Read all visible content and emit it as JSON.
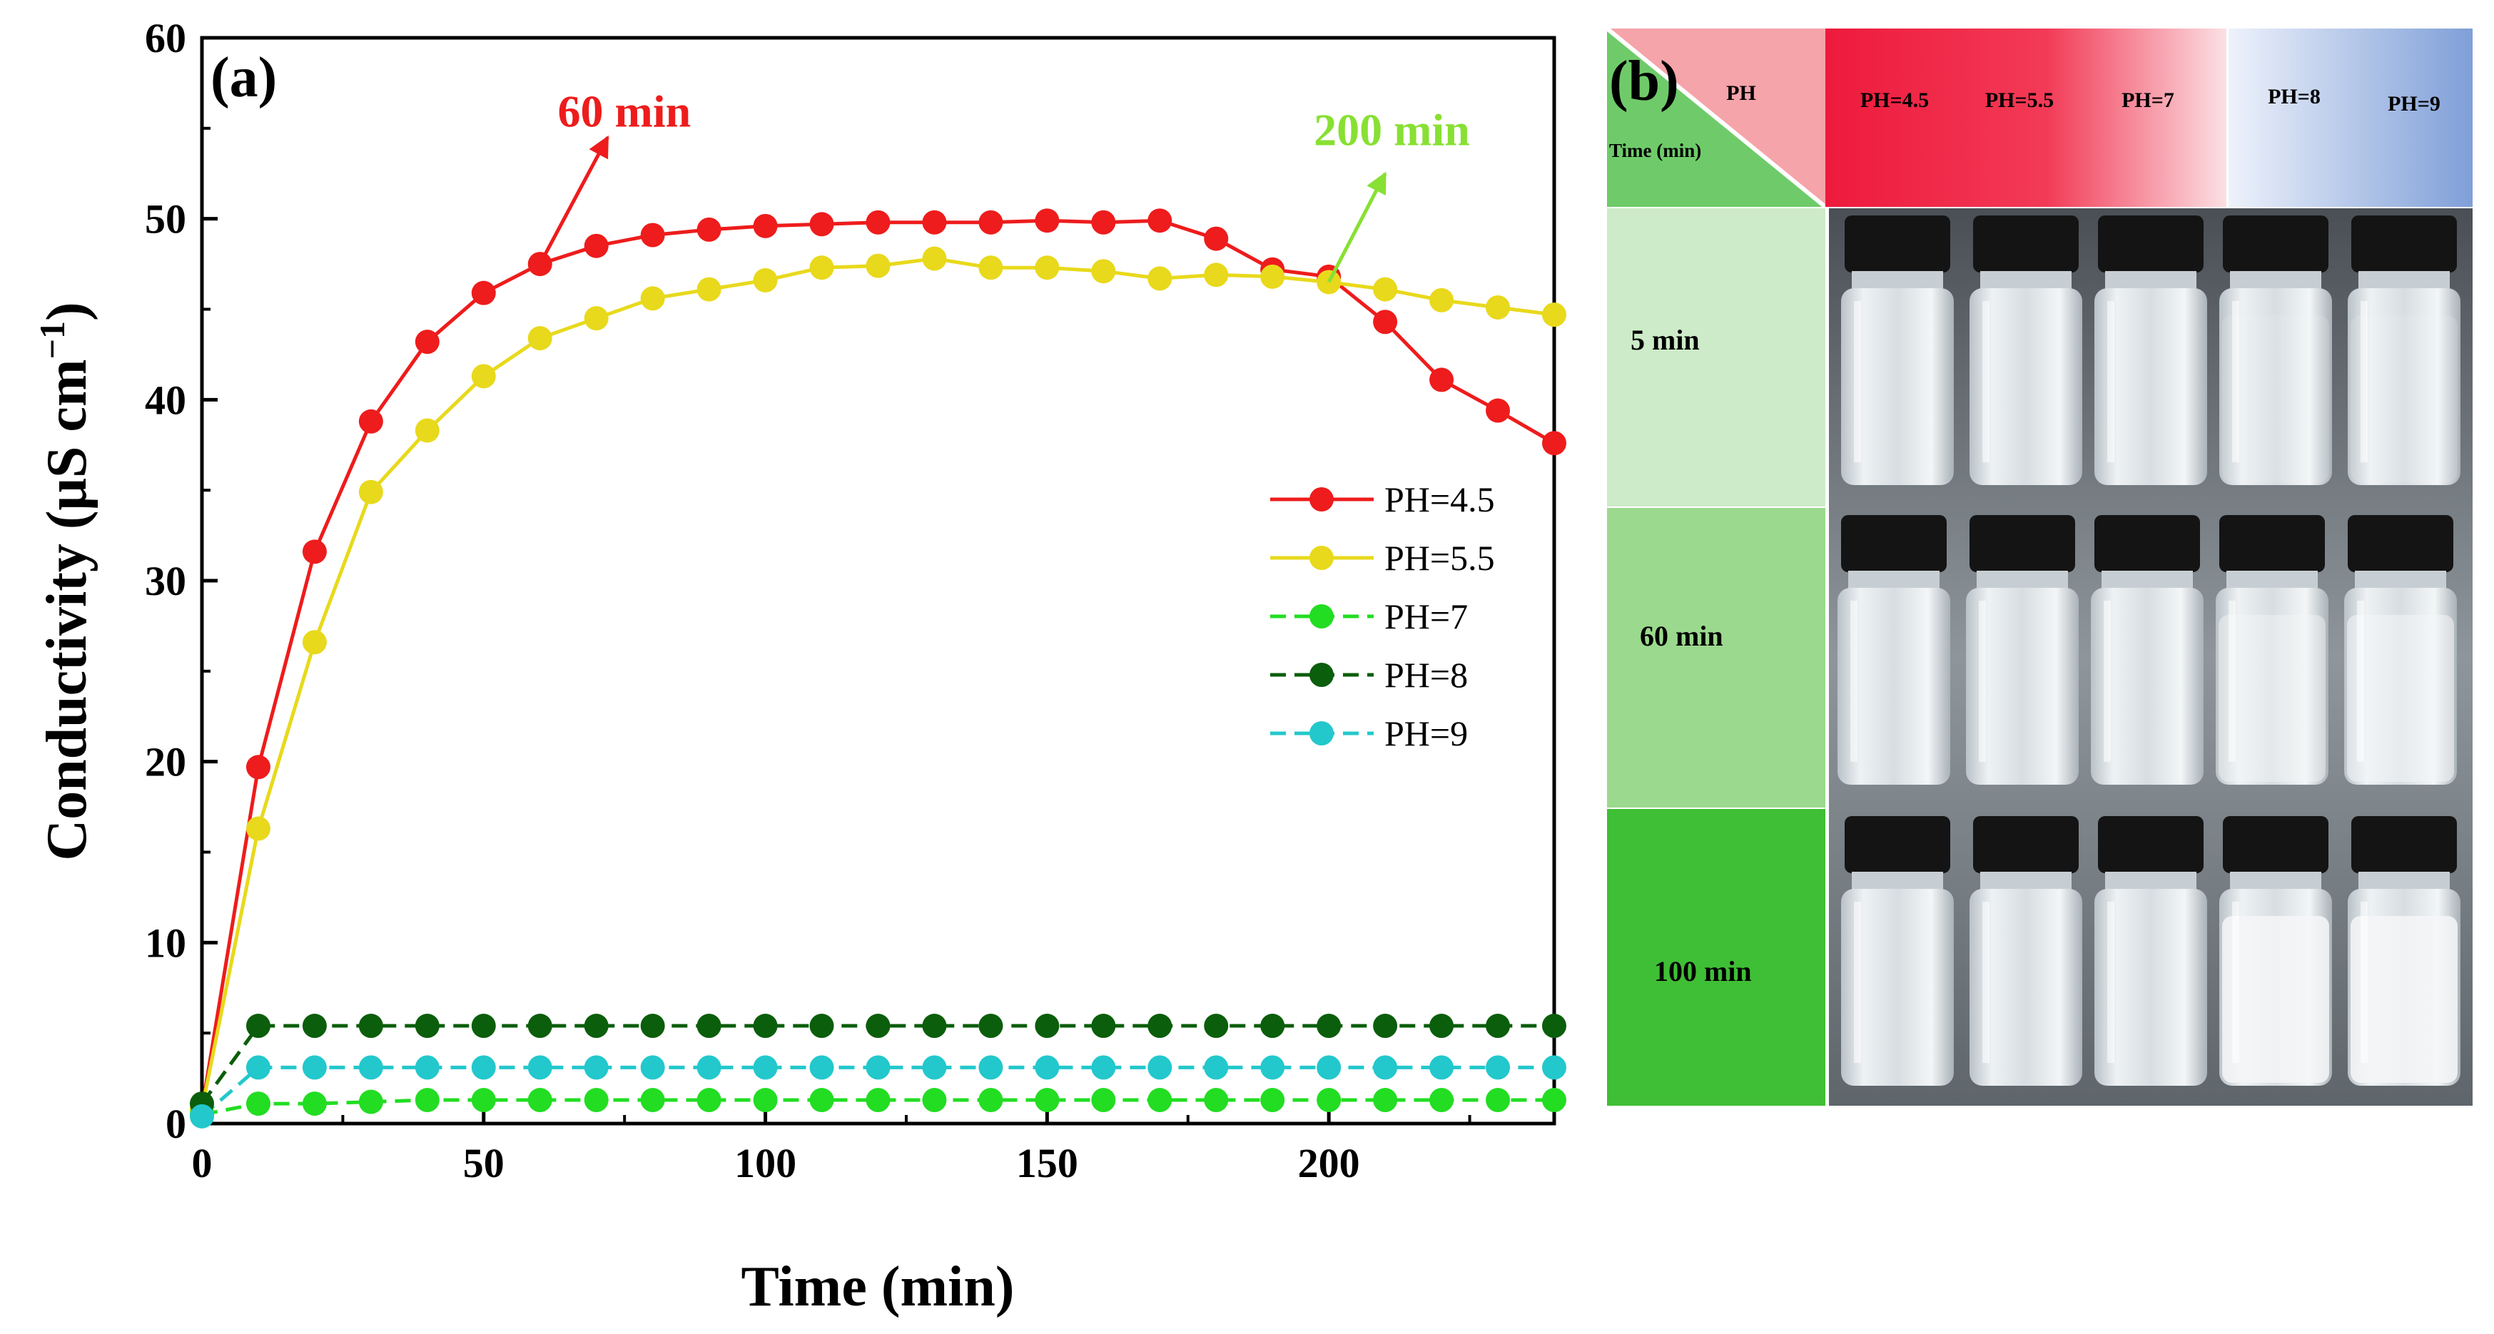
{
  "chart_data": {
    "type": "line",
    "panel_label": "(a)",
    "xlabel": "Time (min)",
    "ylabel": "Conductivity (μS cm",
    "ylabel_sup": "−1",
    "ylabel_close": ")",
    "xlim": [
      0,
      240
    ],
    "ylim": [
      0,
      60
    ],
    "xticks": [
      0,
      50,
      100,
      150,
      200
    ],
    "yticks": [
      0,
      10,
      20,
      30,
      40,
      50,
      60
    ],
    "legend_position": "center-right",
    "x": [
      0,
      10,
      20,
      30,
      40,
      50,
      60,
      70,
      80,
      90,
      100,
      110,
      120,
      130,
      140,
      150,
      160,
      170,
      180,
      190,
      200,
      210,
      220,
      230,
      240
    ],
    "series": [
      {
        "name": "PH=4.5",
        "color": "#ee1c1c",
        "dashed": false,
        "values": [
          0.8,
          19.7,
          31.6,
          38.8,
          43.2,
          45.9,
          47.5,
          48.5,
          49.1,
          49.4,
          49.6,
          49.7,
          49.8,
          49.8,
          49.8,
          49.9,
          49.8,
          49.9,
          48.9,
          47.2,
          46.8,
          44.3,
          41.1,
          39.4,
          37.6
        ]
      },
      {
        "name": "PH=5.5",
        "color": "#e8d91c",
        "dashed": false,
        "values": [
          0.8,
          16.3,
          26.6,
          34.9,
          38.3,
          41.3,
          43.4,
          44.5,
          45.6,
          46.1,
          46.6,
          47.3,
          47.4,
          47.8,
          47.3,
          47.3,
          47.1,
          46.7,
          46.9,
          46.8,
          46.5,
          46.1,
          45.5,
          45.1,
          44.7
        ]
      },
      {
        "name": "PH=7",
        "color": "#22dd22",
        "dashed": true,
        "values": [
          0.5,
          1.1,
          1.1,
          1.2,
          1.3,
          1.3,
          1.3,
          1.3,
          1.3,
          1.3,
          1.3,
          1.3,
          1.3,
          1.3,
          1.3,
          1.3,
          1.3,
          1.3,
          1.3,
          1.3,
          1.3,
          1.3,
          1.3,
          1.3,
          1.3
        ]
      },
      {
        "name": "PH=8",
        "color": "#0b5e0b",
        "dashed": true,
        "values": [
          1.1,
          5.4,
          5.4,
          5.4,
          5.4,
          5.4,
          5.4,
          5.4,
          5.4,
          5.4,
          5.4,
          5.4,
          5.4,
          5.4,
          5.4,
          5.4,
          5.4,
          5.4,
          5.4,
          5.4,
          5.4,
          5.4,
          5.4,
          5.4,
          5.4
        ]
      },
      {
        "name": "PH=9",
        "color": "#22c8cc",
        "dashed": true,
        "values": [
          0.4,
          3.1,
          3.1,
          3.1,
          3.1,
          3.1,
          3.1,
          3.1,
          3.1,
          3.1,
          3.1,
          3.1,
          3.1,
          3.1,
          3.1,
          3.1,
          3.1,
          3.1,
          3.1,
          3.1,
          3.1,
          3.1,
          3.1,
          3.1,
          3.1
        ]
      }
    ],
    "annotations": [
      {
        "text": "60 min",
        "color": "#ee1c1c",
        "arrow_from": [
          60,
          47.5
        ],
        "arrow_to": [
          72,
          54.5
        ]
      },
      {
        "text": "200 min",
        "color": "#88e033",
        "arrow_from": [
          200,
          46.5
        ],
        "arrow_to": [
          210,
          52.5
        ]
      }
    ]
  },
  "photo_panel": {
    "panel_label": "(b)",
    "corner_ph": "PH",
    "corner_time": "Time (min)",
    "columns": [
      "PH=4.5",
      "PH=5.5",
      "PH=7",
      "PH=8",
      "PH=9"
    ],
    "rows": [
      {
        "label": "5 min",
        "turbidity": [
          0,
          0,
          0,
          0.15,
          0.15
        ]
      },
      {
        "label": "60 min",
        "turbidity": [
          0,
          0,
          0,
          0.45,
          0.55
        ]
      },
      {
        "label": "100 min",
        "turbidity": [
          0,
          0,
          0,
          0.85,
          0.85
        ]
      }
    ],
    "colors": {
      "acid_header": "#ee2240",
      "base_header": "#7f9fd8",
      "row1": "#cdebc8",
      "row2": "#9bd98e",
      "row3": "#3fbf35",
      "corner_green": "#6fcb6a",
      "corner_pink": "#f5a4aa"
    }
  }
}
